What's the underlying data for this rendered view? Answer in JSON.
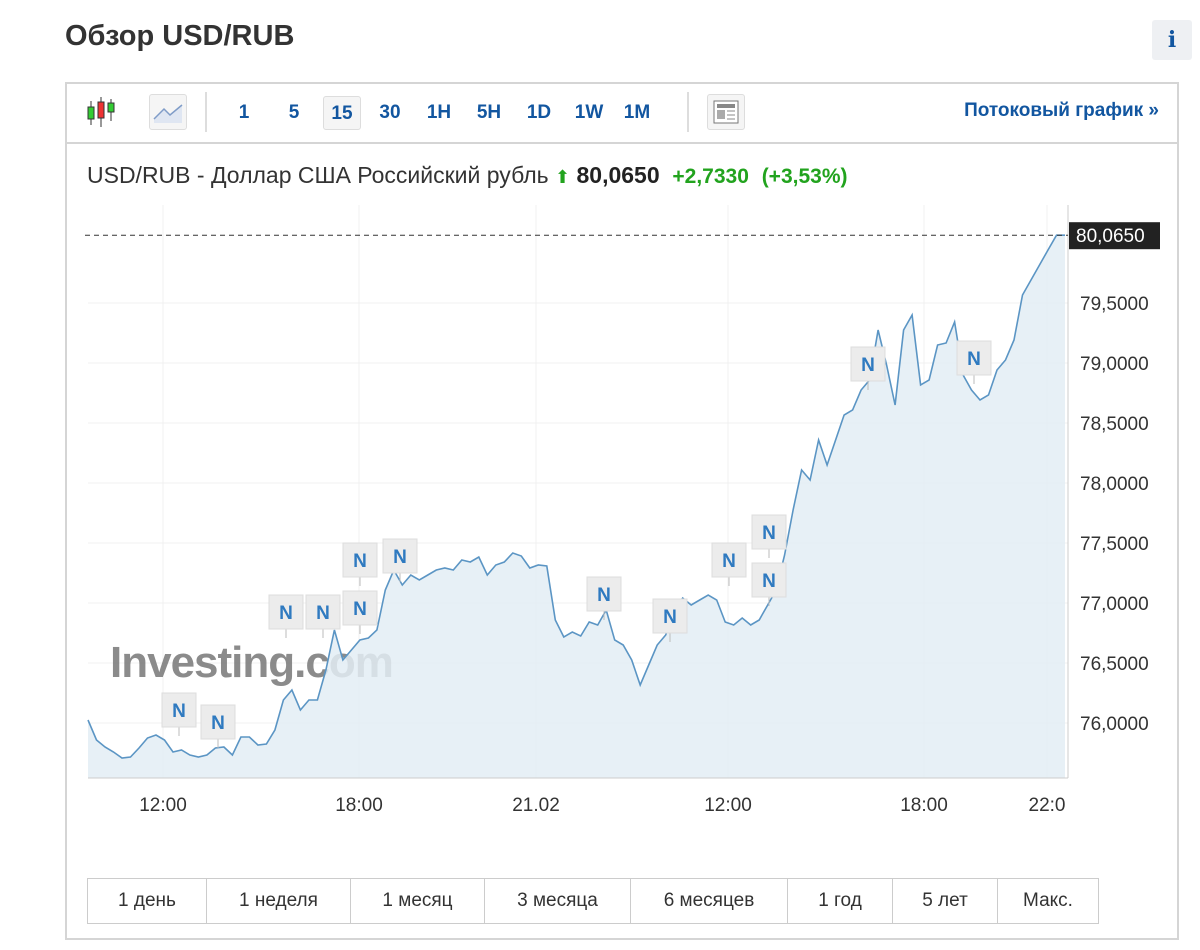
{
  "page_title": "Обзор USD/RUB",
  "info_label": "i",
  "toolbar": {
    "intervals": [
      "1",
      "5",
      "15",
      "30",
      "1H",
      "5H",
      "1D",
      "1W",
      "1M"
    ],
    "selected": "15",
    "stream_label": "Потоковый график »",
    "icons": [
      "candlestick-icon",
      "area-chart-icon",
      "news-layout-icon"
    ]
  },
  "header": {
    "name": "USD/RUB - Доллар США Российский рубль",
    "price": "80,0650",
    "change": "+2,7330",
    "change_pct": "(+3,53%)",
    "up_color": "#22a31e"
  },
  "ranges": [
    "1 день",
    "1 неделя",
    "1 месяц",
    "3 месяца",
    "6 месяцев",
    "1 год",
    "5 лет",
    "Макс."
  ],
  "watermark": "Investing.com",
  "news_label": "N",
  "chart_data": {
    "type": "area",
    "line_color": "#5b95c4",
    "fill_color": "#e3edf5",
    "last_value_label": "80,0650",
    "last_value": 80.065,
    "ylim": [
      75.54,
      80.5
    ],
    "y_ticks": [
      "76,0000",
      "76,5000",
      "77,0000",
      "77,5000",
      "78,0000",
      "78,5000",
      "79,0000",
      "79,5000"
    ],
    "y_tick_values": [
      76,
      76.5,
      77,
      77.5,
      78,
      78.5,
      79,
      79.5
    ],
    "x_ticks": [
      "12:00",
      "18:00",
      "21.02",
      "12:00",
      "18:00",
      "22:0"
    ],
    "grid": true,
    "values": [
      76.025,
      75.858,
      75.8,
      75.758,
      75.708,
      75.717,
      75.792,
      75.875,
      75.9,
      75.858,
      75.758,
      75.775,
      75.733,
      75.717,
      75.733,
      75.792,
      75.8,
      75.733,
      75.883,
      75.883,
      75.817,
      75.825,
      75.942,
      76.192,
      76.275,
      76.108,
      76.192,
      76.192,
      76.442,
      76.775,
      76.525,
      76.608,
      76.692,
      76.708,
      76.775,
      77.108,
      77.275,
      77.15,
      77.233,
      77.192,
      77.233,
      77.275,
      77.292,
      77.275,
      77.358,
      77.342,
      77.383,
      77.233,
      77.317,
      77.342,
      77.417,
      77.392,
      77.292,
      77.317,
      77.308,
      76.858,
      76.717,
      76.758,
      76.725,
      76.842,
      76.817,
      76.942,
      76.692,
      76.65,
      76.525,
      76.317,
      76.483,
      76.65,
      76.733,
      76.942,
      77.042,
      76.983,
      77.025,
      77.067,
      77.025,
      76.842,
      76.817,
      76.875,
      76.817,
      76.858,
      76.983,
      77.108,
      77.4,
      77.775,
      78.108,
      78.025,
      78.358,
      78.15,
      78.358,
      78.567,
      78.608,
      78.775,
      78.858,
      79.275,
      78.983,
      78.65,
      79.275,
      79.4,
      78.817,
      78.858,
      79.15,
      79.167,
      79.342,
      78.9,
      78.775,
      78.692,
      78.733,
      78.942,
      79.025,
      79.192,
      79.567,
      79.692,
      79.817,
      79.942,
      80.065,
      80.065
    ]
  }
}
